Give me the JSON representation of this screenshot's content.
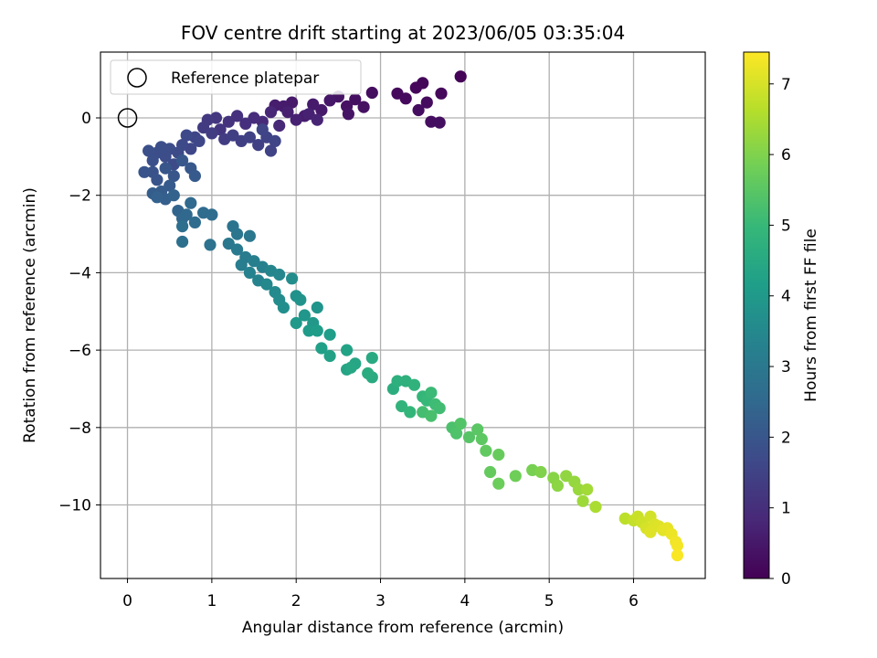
{
  "chart_data": {
    "type": "scatter",
    "title": "FOV centre drift starting at 2023/06/05 03:35:04",
    "xlabel": "Angular distance from reference (arcmin)",
    "ylabel": "Rotation from reference (arcmin)",
    "xlim": [
      -0.32,
      6.85
    ],
    "ylim": [
      -11.9,
      1.7
    ],
    "x_ticks": [
      0,
      1,
      2,
      3,
      4,
      5,
      6
    ],
    "y_ticks": [
      0,
      -2,
      -4,
      -6,
      -8,
      -10
    ],
    "grid": true,
    "legend": {
      "placement": "top-left",
      "entries": [
        "Reference platepar"
      ]
    },
    "reference_point": {
      "x": 0,
      "y": 0
    },
    "colorbar": {
      "label": "Hours from first FF file",
      "min": 0,
      "max": 7.45,
      "ticks": [
        0,
        1,
        2,
        3,
        4,
        5,
        6,
        7
      ],
      "colormap": "viridis"
    },
    "colormap_stops": [
      "#440154",
      "#482878",
      "#3e4989",
      "#31688e",
      "#26828e",
      "#1f9e89",
      "#35b779",
      "#6ece58",
      "#b5de2b",
      "#fde725"
    ],
    "points": [
      [
        3.95,
        1.07,
        0.05
      ],
      [
        3.5,
        0.9,
        0.1
      ],
      [
        3.42,
        0.78,
        0.12
      ],
      [
        3.72,
        0.63,
        0.15
      ],
      [
        3.2,
        0.63,
        0.18
      ],
      [
        3.3,
        0.5,
        0.2
      ],
      [
        3.55,
        0.4,
        0.22
      ],
      [
        3.45,
        0.2,
        0.25
      ],
      [
        3.6,
        -0.1,
        0.28
      ],
      [
        3.7,
        -0.12,
        0.3
      ],
      [
        2.9,
        0.65,
        0.25
      ],
      [
        2.7,
        0.48,
        0.3
      ],
      [
        2.6,
        0.3,
        0.35
      ],
      [
        2.8,
        0.28,
        0.35
      ],
      [
        2.5,
        0.55,
        0.4
      ],
      [
        2.62,
        0.1,
        0.4
      ],
      [
        2.4,
        0.45,
        0.45
      ],
      [
        2.3,
        0.2,
        0.5
      ],
      [
        2.2,
        0.35,
        0.55
      ],
      [
        2.1,
        0.05,
        0.6
      ],
      [
        1.95,
        0.4,
        0.5
      ],
      [
        1.85,
        0.3,
        0.55
      ],
      [
        1.75,
        0.32,
        0.6
      ],
      [
        1.9,
        0.15,
        0.65
      ],
      [
        2.0,
        -0.05,
        0.7
      ],
      [
        2.15,
        0.1,
        0.7
      ],
      [
        2.25,
        -0.05,
        0.75
      ],
      [
        1.7,
        0.15,
        0.8
      ],
      [
        1.8,
        -0.2,
        0.85
      ],
      [
        1.6,
        -0.1,
        0.9
      ],
      [
        1.5,
        0.0,
        0.95
      ],
      [
        1.4,
        -0.15,
        1.0
      ],
      [
        1.3,
        0.05,
        1.05
      ],
      [
        1.2,
        -0.1,
        1.1
      ],
      [
        1.1,
        -0.3,
        1.15
      ],
      [
        1.05,
        0.0,
        1.2
      ],
      [
        0.95,
        -0.05,
        1.25
      ],
      [
        0.9,
        -0.25,
        1.3
      ],
      [
        1.0,
        -0.4,
        1.35
      ],
      [
        1.15,
        -0.55,
        1.35
      ],
      [
        1.25,
        -0.45,
        1.4
      ],
      [
        1.35,
        -0.6,
        1.4
      ],
      [
        1.45,
        -0.5,
        1.45
      ],
      [
        1.55,
        -0.7,
        1.45
      ],
      [
        1.65,
        -0.5,
        1.5
      ],
      [
        1.7,
        -0.85,
        1.5
      ],
      [
        1.6,
        -0.3,
        1.55
      ],
      [
        1.75,
        -0.6,
        1.55
      ],
      [
        0.8,
        -0.5,
        1.55
      ],
      [
        0.75,
        -0.8,
        1.6
      ],
      [
        0.85,
        -0.6,
        1.6
      ],
      [
        0.7,
        -0.45,
        1.65
      ],
      [
        0.65,
        -0.7,
        1.65
      ],
      [
        0.6,
        -0.9,
        1.7
      ],
      [
        0.55,
        -1.2,
        1.7
      ],
      [
        0.5,
        -0.8,
        1.75
      ],
      [
        0.45,
        -1.0,
        1.75
      ],
      [
        0.4,
        -0.75,
        1.8
      ],
      [
        0.35,
        -0.9,
        1.8
      ],
      [
        0.3,
        -1.1,
        1.85
      ],
      [
        0.25,
        -0.85,
        1.85
      ],
      [
        0.3,
        -1.4,
        1.9
      ],
      [
        0.2,
        -1.4,
        1.95
      ],
      [
        0.35,
        -1.6,
        1.95
      ],
      [
        0.45,
        -1.3,
        2.0
      ],
      [
        0.55,
        -1.5,
        2.0
      ],
      [
        0.65,
        -1.1,
        2.05
      ],
      [
        0.75,
        -1.3,
        2.05
      ],
      [
        0.8,
        -1.5,
        2.1
      ],
      [
        0.5,
        -1.75,
        2.1
      ],
      [
        0.4,
        -1.9,
        2.15
      ],
      [
        0.3,
        -1.95,
        2.2
      ],
      [
        0.45,
        -2.1,
        2.25
      ],
      [
        0.35,
        -2.05,
        2.3
      ],
      [
        0.55,
        -2.0,
        2.35
      ],
      [
        0.6,
        -2.4,
        2.4
      ],
      [
        0.65,
        -2.6,
        2.45
      ],
      [
        0.7,
        -2.5,
        2.5
      ],
      [
        0.75,
        -2.2,
        2.55
      ],
      [
        0.8,
        -2.7,
        2.6
      ],
      [
        0.9,
        -2.45,
        2.6
      ],
      [
        1.0,
        -2.5,
        2.65
      ],
      [
        0.65,
        -2.8,
        2.7
      ],
      [
        0.65,
        -3.2,
        2.75
      ],
      [
        0.98,
        -3.28,
        2.8
      ],
      [
        1.25,
        -2.8,
        2.85
      ],
      [
        1.3,
        -3.0,
        2.9
      ],
      [
        1.45,
        -3.05,
        2.95
      ],
      [
        1.2,
        -3.25,
        3.0
      ],
      [
        1.3,
        -3.4,
        3.05
      ],
      [
        1.4,
        -3.6,
        3.1
      ],
      [
        1.35,
        -3.8,
        3.15
      ],
      [
        1.5,
        -3.7,
        3.2
      ],
      [
        1.6,
        -3.85,
        3.25
      ],
      [
        1.45,
        -4.0,
        3.3
      ],
      [
        1.55,
        -4.2,
        3.35
      ],
      [
        1.7,
        -3.95,
        3.4
      ],
      [
        1.8,
        -4.05,
        3.45
      ],
      [
        1.65,
        -4.3,
        3.5
      ],
      [
        1.75,
        -4.5,
        3.55
      ],
      [
        1.8,
        -4.7,
        3.6
      ],
      [
        1.95,
        -4.15,
        3.65
      ],
      [
        1.85,
        -4.9,
        3.7
      ],
      [
        2.0,
        -4.6,
        3.75
      ],
      [
        2.05,
        -4.7,
        3.8
      ],
      [
        2.25,
        -4.9,
        3.85
      ],
      [
        2.1,
        -5.1,
        3.9
      ],
      [
        2.2,
        -5.3,
        3.95
      ],
      [
        2.0,
        -5.3,
        4.0
      ],
      [
        2.15,
        -5.5,
        4.05
      ],
      [
        2.25,
        -5.5,
        4.1
      ],
      [
        2.4,
        -5.6,
        4.15
      ],
      [
        2.3,
        -5.95,
        4.2
      ],
      [
        2.4,
        -6.15,
        4.25
      ],
      [
        2.6,
        -6.0,
        4.3
      ],
      [
        2.6,
        -6.5,
        4.35
      ],
      [
        2.7,
        -6.35,
        4.4
      ],
      [
        2.65,
        -6.45,
        4.45
      ],
      [
        2.9,
        -6.2,
        4.5
      ],
      [
        2.9,
        -6.7,
        4.55
      ],
      [
        2.85,
        -6.6,
        4.6
      ],
      [
        3.15,
        -7.0,
        4.65
      ],
      [
        3.2,
        -6.8,
        4.7
      ],
      [
        3.3,
        -6.8,
        4.75
      ],
      [
        3.4,
        -6.9,
        4.8
      ],
      [
        3.25,
        -7.45,
        4.85
      ],
      [
        3.35,
        -7.6,
        4.9
      ],
      [
        3.5,
        -7.2,
        4.95
      ],
      [
        3.55,
        -7.3,
        5.0
      ],
      [
        3.6,
        -7.1,
        5.05
      ],
      [
        3.65,
        -7.4,
        5.1
      ],
      [
        3.7,
        -7.5,
        5.15
      ],
      [
        3.5,
        -7.6,
        5.2
      ],
      [
        3.6,
        -7.7,
        5.25
      ],
      [
        3.85,
        -8.0,
        5.3
      ],
      [
        3.9,
        -8.15,
        5.35
      ],
      [
        3.95,
        -7.9,
        5.4
      ],
      [
        4.05,
        -8.25,
        5.45
      ],
      [
        4.15,
        -8.05,
        5.5
      ],
      [
        4.2,
        -8.3,
        5.55
      ],
      [
        4.25,
        -8.6,
        5.6
      ],
      [
        4.3,
        -9.15,
        5.65
      ],
      [
        4.4,
        -8.7,
        5.7
      ],
      [
        4.4,
        -9.45,
        5.75
      ],
      [
        4.6,
        -9.25,
        5.8
      ],
      [
        4.8,
        -9.1,
        5.9
      ],
      [
        4.9,
        -9.15,
        6.0
      ],
      [
        5.05,
        -9.3,
        6.1
      ],
      [
        5.1,
        -9.5,
        6.15
      ],
      [
        5.2,
        -9.25,
        6.2
      ],
      [
        5.3,
        -9.4,
        6.25
      ],
      [
        5.35,
        -9.6,
        6.3
      ],
      [
        5.4,
        -9.9,
        6.35
      ],
      [
        5.45,
        -9.6,
        6.4
      ],
      [
        5.55,
        -10.05,
        6.5
      ],
      [
        5.9,
        -10.35,
        6.7
      ],
      [
        6.0,
        -10.4,
        6.8
      ],
      [
        6.05,
        -10.3,
        6.85
      ],
      [
        6.1,
        -10.45,
        6.9
      ],
      [
        6.2,
        -10.3,
        6.95
      ],
      [
        6.15,
        -10.6,
        7.0
      ],
      [
        6.25,
        -10.5,
        7.05
      ],
      [
        6.3,
        -10.55,
        7.1
      ],
      [
        6.35,
        -10.65,
        7.15
      ],
      [
        6.4,
        -10.6,
        7.2
      ],
      [
        6.45,
        -10.75,
        7.25
      ],
      [
        6.5,
        -10.95,
        7.3
      ],
      [
        6.52,
        -11.05,
        7.35
      ],
      [
        6.52,
        -11.3,
        7.4
      ],
      [
        6.2,
        -10.7,
        7.1
      ]
    ]
  }
}
